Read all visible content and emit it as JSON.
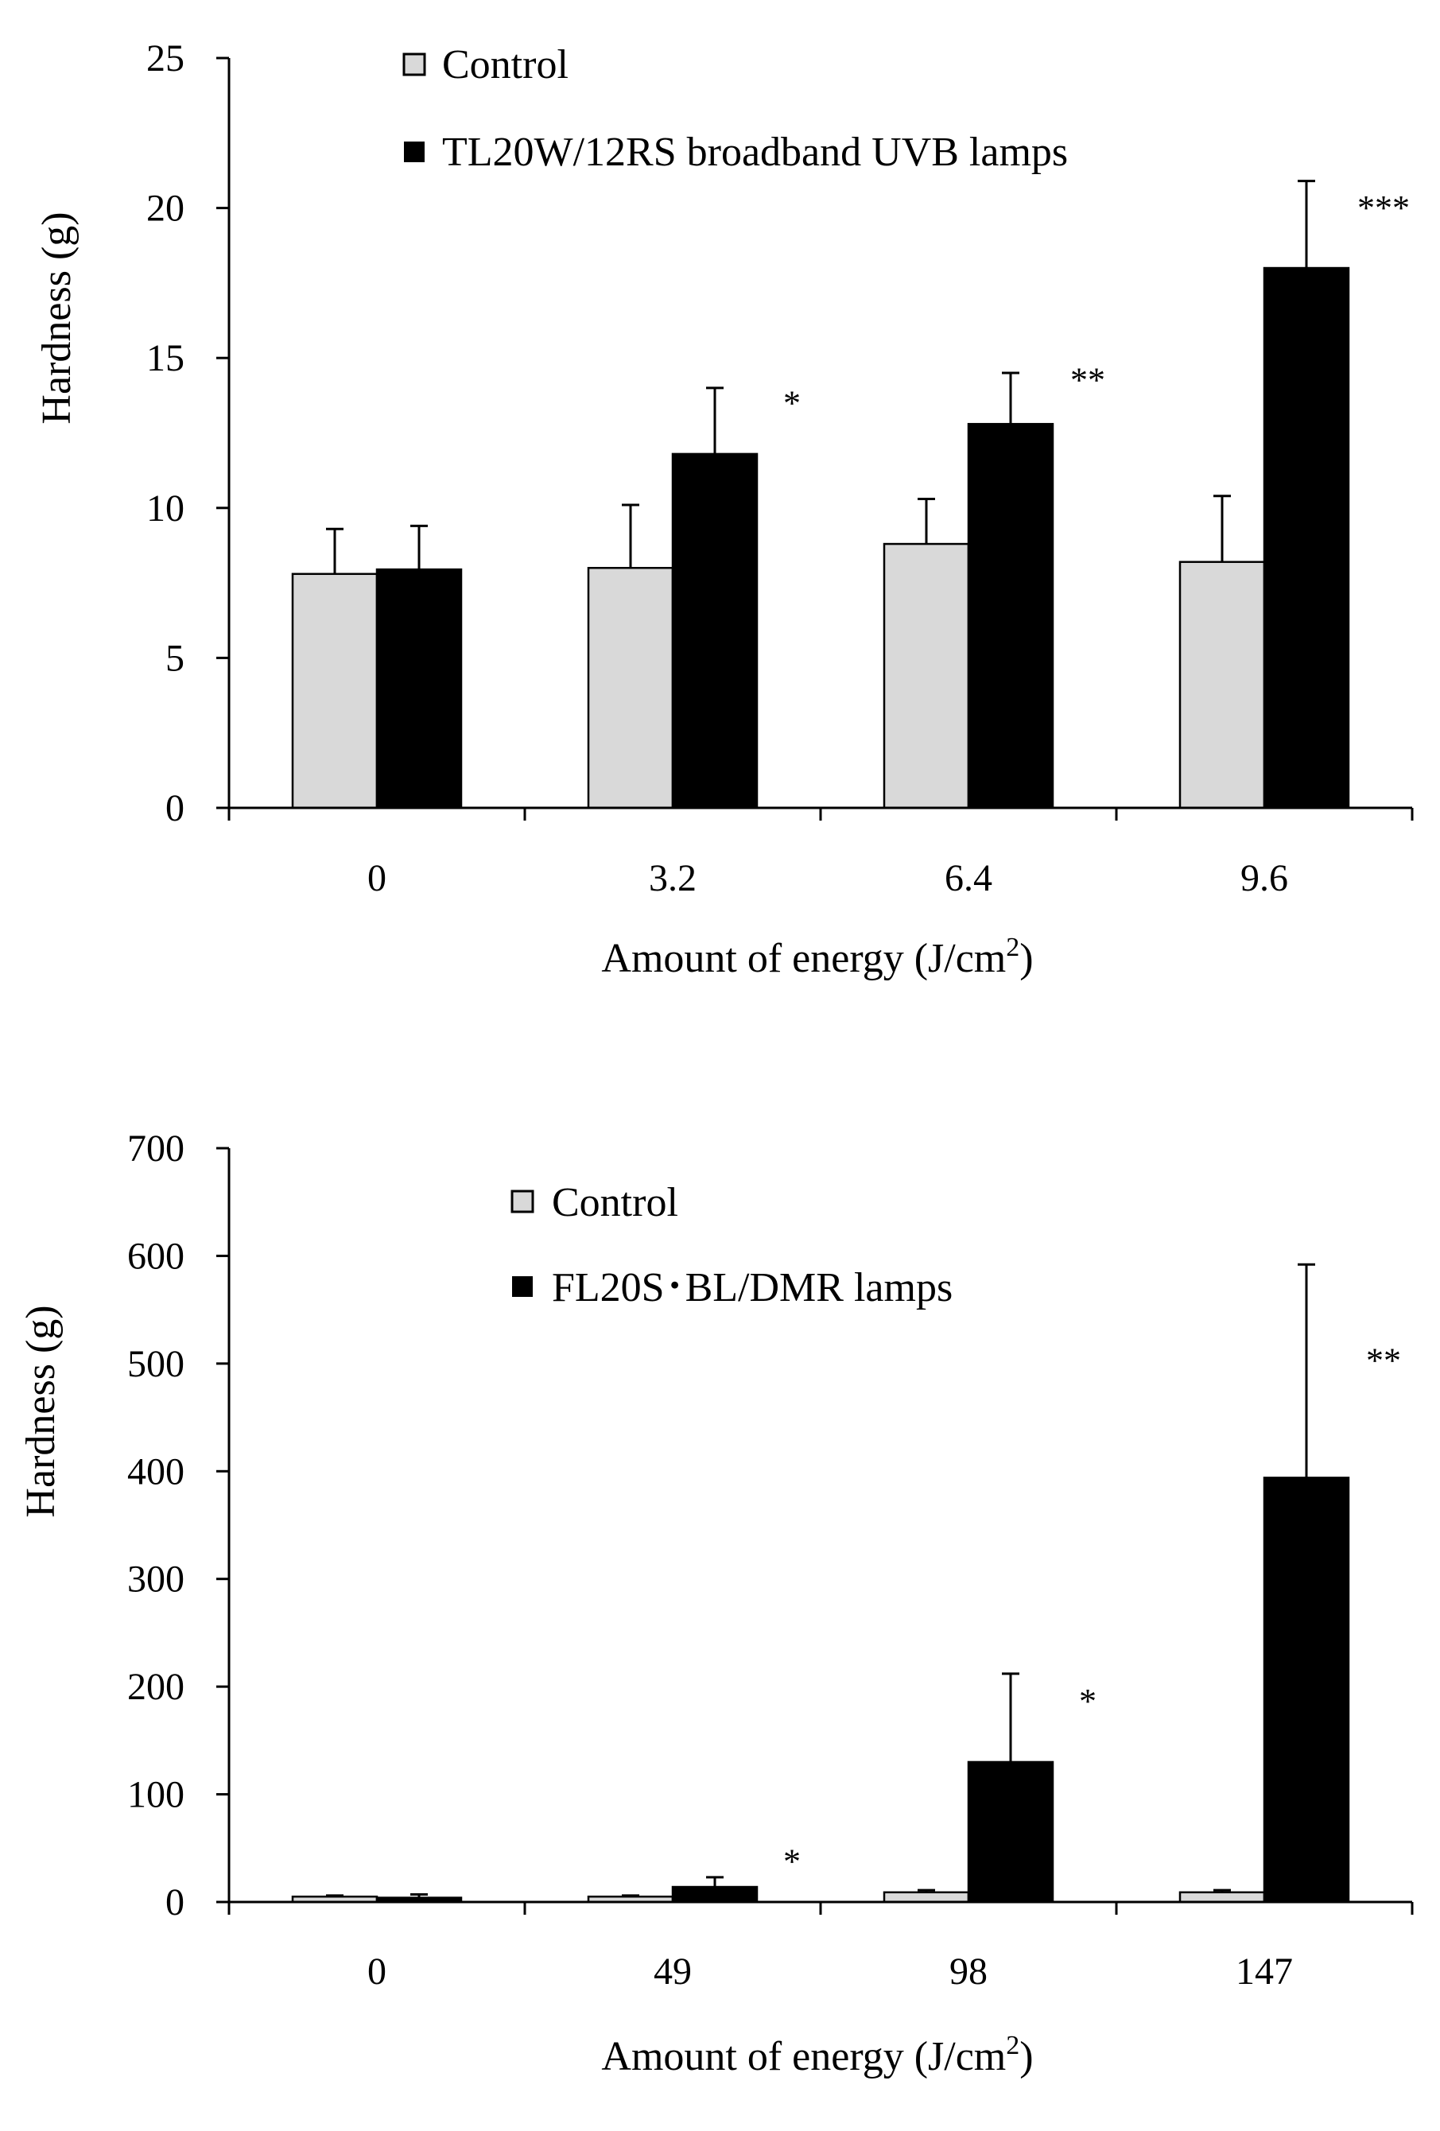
{
  "colors": {
    "control": "#d9d9d9",
    "treated": "#000000",
    "axis": "#000000"
  },
  "chart_data": [
    {
      "type": "bar",
      "title": "",
      "xlabel": "Amount of energy (J/cm",
      "xlabel_sup": "2",
      "xlabel_end": ")",
      "ylabel": "Hardness (g)",
      "ylim": [
        0,
        25
      ],
      "yticks": [
        0,
        5,
        10,
        15,
        20,
        25
      ],
      "categories": [
        "0",
        "3.2",
        "6.4",
        "9.6"
      ],
      "legend_position": "top-center",
      "series": [
        {
          "name": "Control",
          "color": "#d9d9d9",
          "values": [
            7.8,
            8.0,
            8.8,
            8.2
          ],
          "errors": [
            1.5,
            2.1,
            1.5,
            2.2
          ]
        },
        {
          "name": "TL20W/12RS broadband UVB lamps",
          "color": "#000000",
          "values": [
            7.95,
            11.8,
            12.8,
            18.0
          ],
          "errors": [
            1.45,
            2.2,
            1.7,
            2.9
          ]
        }
      ],
      "annotations": [
        "",
        "*",
        "**",
        "***"
      ]
    },
    {
      "type": "bar",
      "title": "",
      "xlabel": "Amount of energy (J/cm",
      "xlabel_sup": "2",
      "xlabel_end": ")",
      "ylabel": "Hardness (g)",
      "ylim": [
        0,
        700
      ],
      "yticks": [
        0,
        100,
        200,
        300,
        400,
        500,
        600,
        700
      ],
      "categories": [
        "0",
        "49",
        "98",
        "147"
      ],
      "legend_position": "top-center",
      "series": [
        {
          "name": "Control",
          "color": "#d9d9d9",
          "values": [
            5,
            5,
            9,
            9
          ],
          "errors": [
            1,
            1,
            2,
            2
          ]
        },
        {
          "name": "FL20S･BL/DMR lamps",
          "color": "#000000",
          "values": [
            4,
            14,
            130,
            394
          ],
          "errors": [
            3,
            9,
            82,
            198
          ]
        }
      ],
      "annotations": [
        "",
        "*",
        "*",
        "**"
      ]
    }
  ]
}
